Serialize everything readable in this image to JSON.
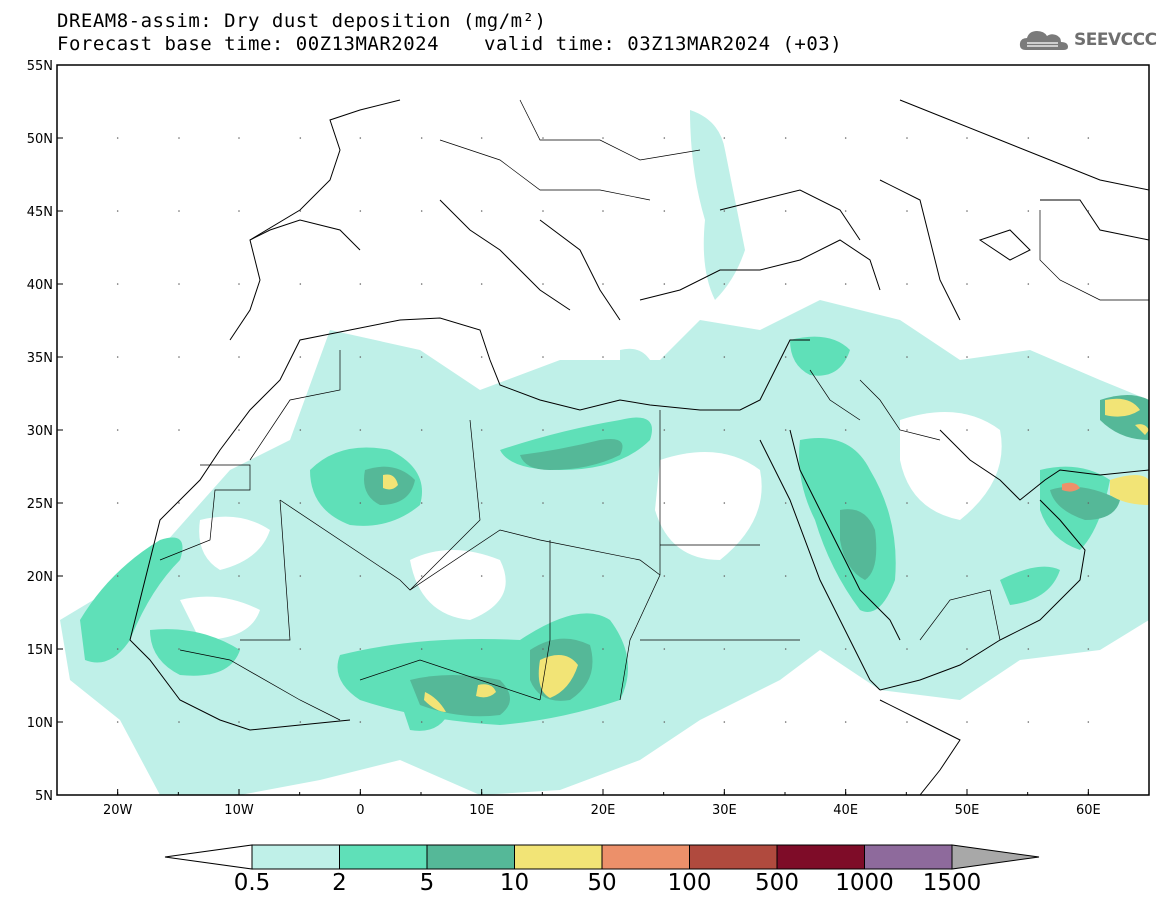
{
  "header": {
    "title": "DREAM8-assim: Dry dust deposition (mg/m²)",
    "forecast_base": "Forecast base time: 00Z13MAR2024",
    "valid_time": "valid time: 03Z13MAR2024 (+03)"
  },
  "logo": {
    "text": "SEEVCCC",
    "icon": "cloud-icon"
  },
  "map": {
    "projection": "lat-lon",
    "lon_range": [
      -25,
      65
    ],
    "lat_range": [
      5,
      55
    ],
    "lon_ticks": [
      "20W",
      "10W",
      "0",
      "10E",
      "20E",
      "30E",
      "40E",
      "50E",
      "60E"
    ],
    "lat_ticks": [
      "55N",
      "50N",
      "45N",
      "40N",
      "35N",
      "30N",
      "25N",
      "20N",
      "15N",
      "10N",
      "5N"
    ]
  },
  "colorbar": {
    "labels": [
      "0.5",
      "2",
      "5",
      "10",
      "50",
      "100",
      "500",
      "1000",
      "1500"
    ],
    "colors": [
      "#bff0e8",
      "#5fe0b8",
      "#55b898",
      "#f2e476",
      "#ec906a",
      "#b04a3e",
      "#7e0c28",
      "#8e6a9c"
    ],
    "under_color": "#ffffff",
    "over_color": "#a8a8a8"
  }
}
